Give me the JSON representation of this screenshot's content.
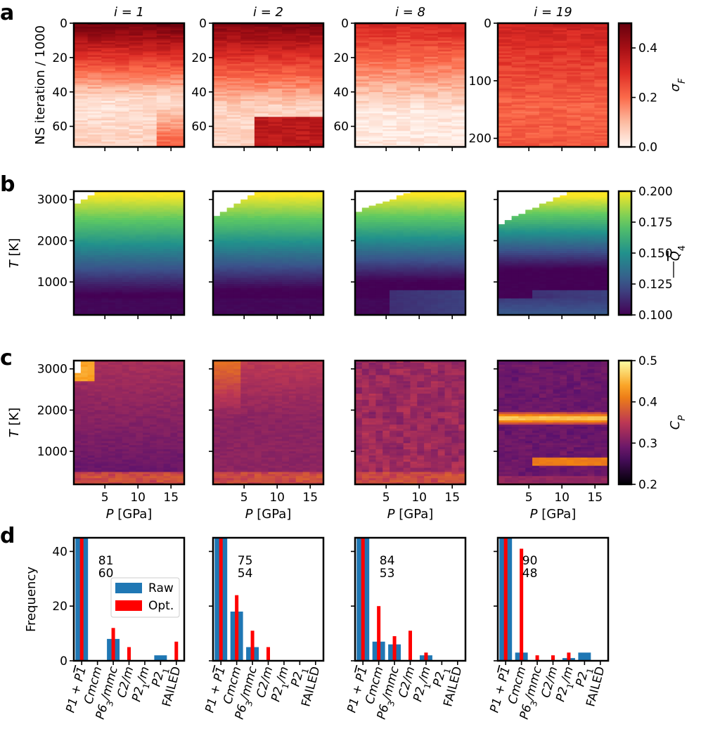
{
  "panel_labels": [
    "a",
    "b",
    "c",
    "d"
  ],
  "column_titles": [
    "i = 1",
    "i = 2",
    "i = 8",
    "i = 19"
  ],
  "colors": {
    "raw": "#1f77b4",
    "opt": "#ff0000"
  },
  "chart_data": [
    {
      "type": "heatmap",
      "panel": "a",
      "quantity": "sigma_F",
      "colormap": "Reds",
      "colorbar_label": "σF",
      "colorbar_range": [
        0.0,
        0.5
      ],
      "colorbar_ticks": [
        "0.0",
        "0.2",
        "0.4"
      ],
      "ylabel": "NS iteration / 1000",
      "y_inverted": true,
      "subplots": [
        {
          "ylim": [
            0,
            72
          ],
          "yticks": [
            "0",
            "20",
            "40",
            "60"
          ]
        },
        {
          "ylim": [
            0,
            72
          ],
          "yticks": [
            "0",
            "20",
            "40",
            "60"
          ]
        },
        {
          "ylim": [
            0,
            72
          ],
          "yticks": [
            "0",
            "20",
            "40",
            "60"
          ]
        },
        {
          "ylim": [
            0,
            215
          ],
          "yticks": [
            "0",
            "100",
            "200"
          ]
        }
      ]
    },
    {
      "type": "heatmap",
      "panel": "b",
      "quantity": "mean Q4",
      "colormap": "viridis",
      "colorbar_label": "Q4",
      "colorbar_range": [
        0.1,
        0.2
      ],
      "colorbar_ticks": [
        "0.100",
        "0.125",
        "0.150",
        "0.175",
        "0.200"
      ],
      "ylabel": "T [K]",
      "ylim": [
        200,
        3200
      ],
      "yticks": [
        "1000",
        "2000",
        "3000"
      ],
      "xlim": [
        0.3,
        17
      ]
    },
    {
      "type": "heatmap",
      "panel": "c",
      "quantity": "C_P",
      "colormap": "inferno",
      "colorbar_label": "CP",
      "colorbar_range": [
        0.2,
        0.5
      ],
      "colorbar_ticks": [
        "0.2",
        "0.3",
        "0.4",
        "0.5"
      ],
      "ylabel": "T [K]",
      "xlabel": "P [GPa]",
      "ylim": [
        200,
        3200
      ],
      "yticks": [
        "1000",
        "2000",
        "3000"
      ],
      "xlim": [
        0.3,
        17
      ],
      "xticks": [
        "5",
        "10",
        "15"
      ]
    },
    {
      "type": "bar",
      "panel": "d",
      "ylabel": "Frequency",
      "ylim": [
        0,
        45
      ],
      "yticks": [
        "0",
        "20",
        "40"
      ],
      "legend": {
        "placement": "center-left",
        "entries": [
          "Raw",
          "Opt."
        ]
      },
      "categories": [
        {
          "base": "P1 + P",
          "bar": "1",
          "rest": ""
        },
        {
          "base": "Cmcm",
          "rest": ""
        },
        {
          "base": "P6",
          "sub": "3",
          "rest": "/mmc"
        },
        {
          "base": "C2/m",
          "rest": ""
        },
        {
          "base": "P2",
          "sub": "1",
          "rest": "/m"
        },
        {
          "base": "P2",
          "sub": "1",
          "rest": ""
        },
        {
          "base": "FAILED",
          "rest": ""
        }
      ],
      "subplots": [
        {
          "raw": [
            81,
            0,
            8,
            0,
            0,
            2,
            0
          ],
          "opt": [
            60,
            0,
            12,
            5,
            0,
            0,
            7
          ],
          "annot_raw": "81",
          "annot_opt": "60"
        },
        {
          "raw": [
            75,
            18,
            5,
            0,
            0,
            0,
            0
          ],
          "opt": [
            54,
            24,
            11,
            5,
            0,
            0,
            0
          ],
          "annot_raw": "75",
          "annot_opt": "54"
        },
        {
          "raw": [
            84,
            7,
            6,
            0,
            2,
            0,
            0
          ],
          "opt": [
            53,
            20,
            9,
            11,
            3,
            0,
            0
          ],
          "annot_raw": "84",
          "annot_opt": "53"
        },
        {
          "raw": [
            90,
            3,
            0,
            0,
            1,
            3,
            0
          ],
          "opt": [
            48,
            41,
            2,
            2,
            3,
            0,
            0
          ],
          "annot_raw": "90",
          "annot_opt": "48"
        }
      ]
    }
  ]
}
